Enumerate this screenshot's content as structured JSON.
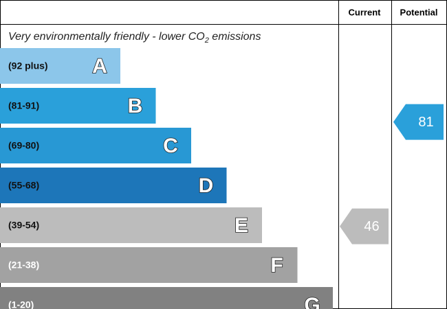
{
  "header": {
    "current": "Current",
    "potential": "Potential"
  },
  "subtitle": {
    "before": "Very environmentally friendly - lower CO",
    "sub": "2",
    "after": " emissions"
  },
  "bands": [
    {
      "range": "(92 plus)",
      "letter": "A",
      "color": "#8cc6ea",
      "text_color": "#111111"
    },
    {
      "range": "(81-91)",
      "letter": "B",
      "color": "#2aa0da",
      "text_color": "#111111"
    },
    {
      "range": "(69-80)",
      "letter": "C",
      "color": "#2898d4",
      "text_color": "#111111"
    },
    {
      "range": "(55-68)",
      "letter": "D",
      "color": "#1d76b9",
      "text_color": "#111111"
    },
    {
      "range": "(39-54)",
      "letter": "E",
      "color": "#bcbcbc",
      "text_color": "#111111"
    },
    {
      "range": "(21-38)",
      "letter": "F",
      "color": "#a2a2a2",
      "text_color": "#ffffff"
    },
    {
      "range": "(1-20)",
      "letter": "G",
      "color": "#818181",
      "text_color": "#ffffff"
    }
  ],
  "current": {
    "value": 46,
    "label": "46"
  },
  "potential": {
    "value": 81,
    "label": "81"
  }
}
